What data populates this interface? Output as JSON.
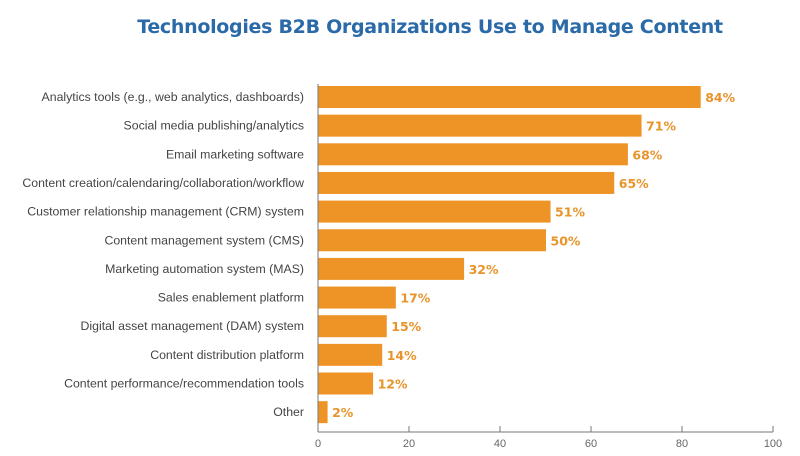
{
  "chart_data": {
    "type": "bar",
    "orientation": "horizontal",
    "title": "Technologies B2B Organizations Use to Manage Content",
    "xlabel": "",
    "ylabel": "",
    "xlim": [
      0,
      100
    ],
    "xticks": [
      0,
      20,
      40,
      60,
      80,
      100
    ],
    "grid": false,
    "bar_color": "#ee9427",
    "label_color": "#e8942a",
    "title_color": "#2a6aa8",
    "categories": [
      "Analytics tools (e.g., web analytics, dashboards)",
      "Social media publishing/analytics",
      "Email marketing software",
      "Content creation/calendaring/collaboration/workflow",
      "Customer relationship management (CRM) system",
      "Content management system (CMS)",
      "Marketing automation system (MAS)",
      "Sales enablement platform",
      "Digital asset management (DAM) system",
      "Content distribution platform",
      "Content performance/recommendation tools",
      "Other"
    ],
    "values": [
      84,
      71,
      68,
      65,
      51,
      50,
      32,
      17,
      15,
      14,
      12,
      2
    ],
    "value_labels": [
      "84%",
      "71%",
      "68%",
      "65%",
      "51%",
      "50%",
      "32%",
      "17%",
      "15%",
      "14%",
      "12%",
      "2%"
    ]
  }
}
